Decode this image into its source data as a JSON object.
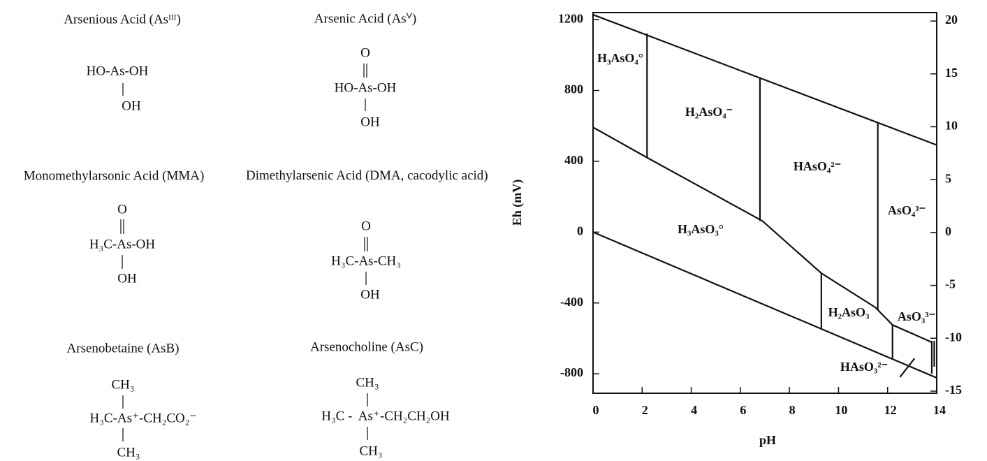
{
  "structures": [
    {
      "name": "Arsenious Acid (Asᴵᴵᴵ)",
      "formula": [
        "HO-As-OH",
        "OH"
      ]
    },
    {
      "name": "Arsenic Acid (Asⱽ)",
      "formula": [
        "O",
        "HO-As-OH",
        "OH"
      ]
    },
    {
      "name": "Monomethylarsonic Acid (MMA)",
      "formula": [
        "O",
        "H₃C-As-OH",
        "OH"
      ]
    },
    {
      "name": "Dimethylarsenic Acid (DMA, cacodylic acid)",
      "formula": [
        "O",
        "H₃C-As-CH₃",
        "OH"
      ]
    },
    {
      "name": "Arsenobetaine (AsB)",
      "formula": [
        "CH₃",
        "H₃C-As⁺-CH₂CO₂⁻",
        "CH₃"
      ]
    },
    {
      "name": "Arsenocholine (AsC)",
      "formula": [
        "CH₃",
        "H₃C -  As⁺-CH₂CH₂OH",
        "CH₃"
      ]
    }
  ],
  "chart_data": {
    "type": "line",
    "x_label": "pH",
    "y_label": "Eh (mV)",
    "xlim": [
      0,
      14
    ],
    "xticks": [
      0,
      2,
      4,
      6,
      8,
      10,
      12,
      14
    ],
    "ylim": [
      -910,
      1240
    ],
    "yticks": [
      -800,
      -400,
      0,
      400,
      800,
      1200
    ],
    "y2lim": [
      -15.2,
      20.8
    ],
    "y2ticks": [
      -15,
      -10,
      -5,
      0,
      5,
      10,
      15,
      20
    ],
    "series": [
      {
        "color": "#111111",
        "x": [
          0,
          14
        ],
        "values": [
          1228,
          492
        ]
      },
      {
        "color": "#111111",
        "x": [
          0,
          14
        ],
        "values": [
          0,
          -823
        ]
      },
      {
        "color": "#111111",
        "x": [
          0,
          2.2,
          6.9,
          9.3,
          11.5,
          12.2,
          13.8
        ],
        "values": [
          592,
          421,
          63,
          -232,
          -425,
          -524,
          -622
        ]
      },
      {
        "color": "#111111",
        "x": [
          2.2,
          2.2
        ],
        "values": [
          421,
          1122
        ]
      },
      {
        "color": "#111111",
        "x": [
          6.8,
          6.8
        ],
        "values": [
          63,
          874
        ]
      },
      {
        "color": "#111111",
        "x": [
          11.6,
          11.6
        ],
        "values": [
          -440,
          618
        ]
      },
      {
        "color": "#111111",
        "x": [
          9.3,
          9.3
        ],
        "values": [
          -232,
          -543
        ]
      },
      {
        "color": "#111111",
        "x": [
          12.2,
          12.2
        ],
        "values": [
          -524,
          -713
        ]
      },
      {
        "color": "#111111",
        "x": [
          13.8,
          13.8
        ],
        "values": [
          -614,
          -799
        ]
      },
      {
        "color": "#111111",
        "x": [
          13.9,
          13.9
        ],
        "values": [
          -614,
          -760
        ]
      },
      {
        "color": "#111111",
        "x": [
          12.5,
          13.1
        ],
        "values": [
          -819,
          -713
        ]
      }
    ],
    "annotations": [
      "H₃AsO₄°",
      "H₂AsO₄⁻",
      "HAsO₄²⁻",
      "AsO₄³⁻",
      "H₃AsO₃°",
      "H₂AsO₃",
      "AsO₃³⁻",
      "HAsO₃²⁻"
    ]
  }
}
